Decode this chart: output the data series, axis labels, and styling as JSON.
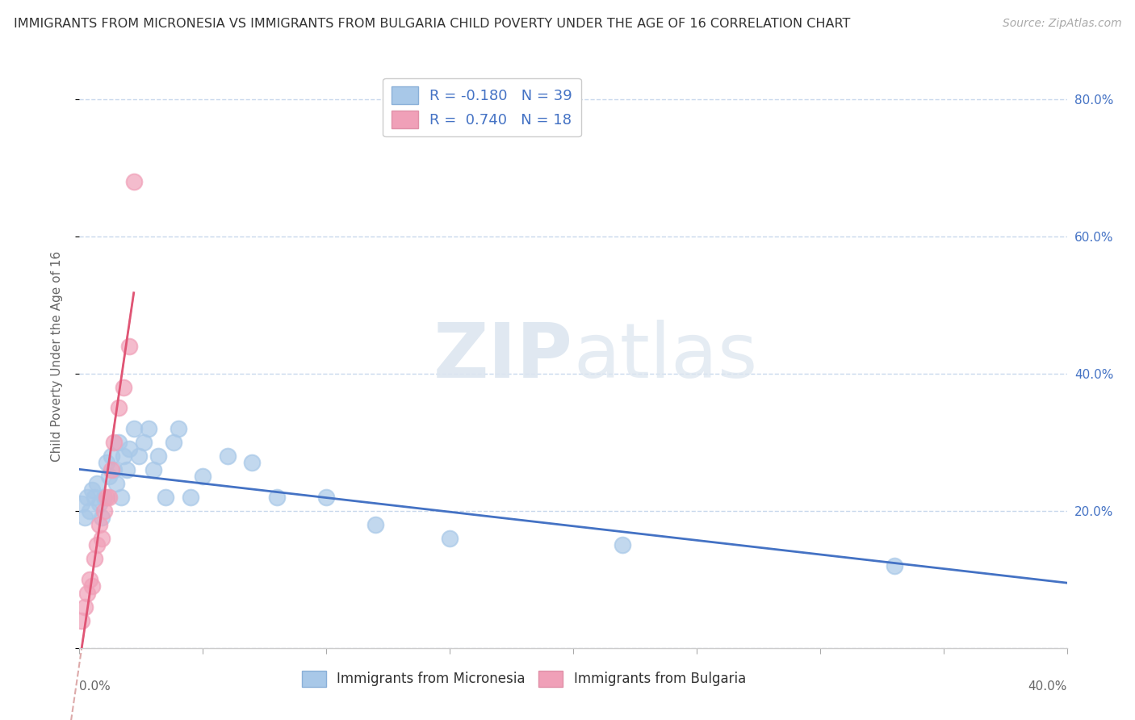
{
  "title": "IMMIGRANTS FROM MICRONESIA VS IMMIGRANTS FROM BULGARIA CHILD POVERTY UNDER THE AGE OF 16 CORRELATION CHART",
  "source": "Source: ZipAtlas.com",
  "ylabel": "Child Poverty Under the Age of 16",
  "xlim": [
    0.0,
    0.4
  ],
  "ylim": [
    0.0,
    0.85
  ],
  "xticks": [
    0.0,
    0.05,
    0.1,
    0.15,
    0.2,
    0.25,
    0.3,
    0.35,
    0.4
  ],
  "yticks": [
    0.0,
    0.2,
    0.4,
    0.6,
    0.8
  ],
  "left_ytick_labels": [
    "",
    "",
    "",
    "",
    ""
  ],
  "right_ytick_labels": [
    "",
    "20.0%",
    "40.0%",
    "60.0%",
    "80.0%"
  ],
  "x_edge_labels": [
    "0.0%",
    "40.0%"
  ],
  "micronesia_R": -0.18,
  "micronesia_N": 39,
  "bulgaria_R": 0.74,
  "bulgaria_N": 18,
  "micronesia_color": "#a8c8e8",
  "bulgaria_color": "#f0a0b8",
  "micronesia_line_color": "#4472c4",
  "bulgaria_line_color": "#e05575",
  "background_color": "#ffffff",
  "grid_color": "#c8d8ec",
  "watermark_zip": "ZIP",
  "watermark_atlas": "atlas",
  "micronesia_x": [
    0.001,
    0.002,
    0.003,
    0.004,
    0.005,
    0.006,
    0.007,
    0.008,
    0.009,
    0.01,
    0.011,
    0.012,
    0.013,
    0.014,
    0.015,
    0.016,
    0.017,
    0.018,
    0.019,
    0.02,
    0.022,
    0.024,
    0.026,
    0.028,
    0.03,
    0.032,
    0.035,
    0.038,
    0.04,
    0.045,
    0.05,
    0.06,
    0.07,
    0.08,
    0.1,
    0.12,
    0.15,
    0.22,
    0.33
  ],
  "micronesia_y": [
    0.21,
    0.19,
    0.22,
    0.2,
    0.23,
    0.22,
    0.24,
    0.21,
    0.19,
    0.22,
    0.27,
    0.25,
    0.28,
    0.26,
    0.24,
    0.3,
    0.22,
    0.28,
    0.26,
    0.29,
    0.32,
    0.28,
    0.3,
    0.32,
    0.26,
    0.28,
    0.22,
    0.3,
    0.32,
    0.22,
    0.25,
    0.28,
    0.27,
    0.22,
    0.22,
    0.18,
    0.16,
    0.15,
    0.12
  ],
  "bulgaria_x": [
    0.001,
    0.002,
    0.003,
    0.004,
    0.005,
    0.006,
    0.007,
    0.008,
    0.009,
    0.01,
    0.011,
    0.012,
    0.013,
    0.014,
    0.016,
    0.018,
    0.02,
    0.022
  ],
  "bulgaria_y": [
    0.04,
    0.06,
    0.08,
    0.1,
    0.09,
    0.13,
    0.15,
    0.18,
    0.16,
    0.2,
    0.22,
    0.22,
    0.26,
    0.3,
    0.35,
    0.38,
    0.44,
    0.68
  ]
}
